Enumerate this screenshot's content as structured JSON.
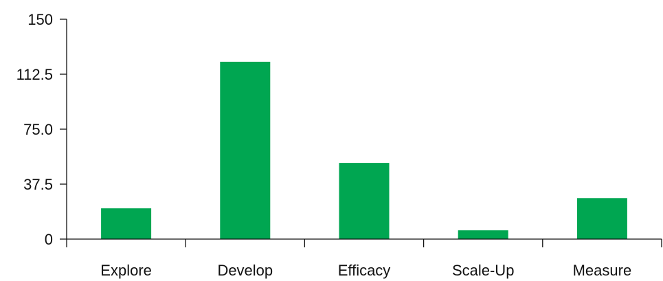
{
  "chart_data": {
    "type": "bar",
    "title": "",
    "xlabel": "",
    "ylabel": "",
    "categories": [
      "Explore",
      "Develop",
      "Efficacy",
      "Scale-Up",
      "Measure"
    ],
    "values": [
      21,
      121,
      52,
      6,
      28
    ],
    "ylim": [
      0,
      150
    ],
    "yticks": [
      "0",
      "37.5",
      "75.0",
      "112.5",
      "150"
    ],
    "ytick_values": [
      0,
      37.5,
      75,
      112.5,
      150
    ],
    "bar_color": "#00a651",
    "grid": false,
    "legend": "none"
  }
}
